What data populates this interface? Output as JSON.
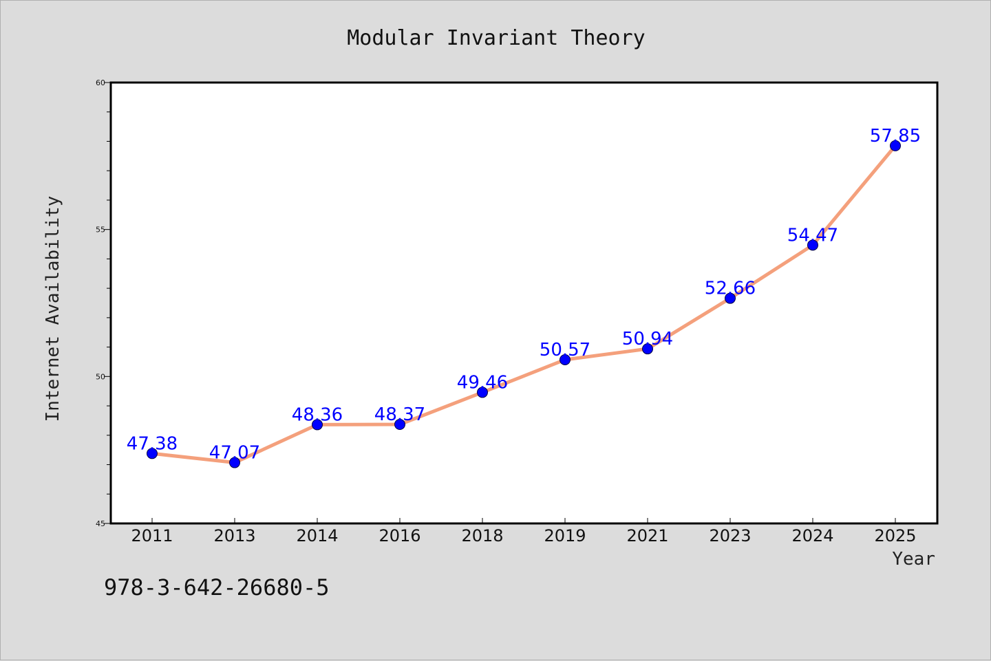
{
  "chart_data": {
    "type": "line",
    "title": "Modular Invariant Theory",
    "xlabel": "Year",
    "ylabel": "Internet Availability",
    "categories": [
      "2011",
      "2013",
      "2014",
      "2016",
      "2018",
      "2019",
      "2021",
      "2023",
      "2024",
      "2025"
    ],
    "series": [
      {
        "values": [
          47.38,
          47.07,
          48.36,
          48.37,
          49.46,
          50.57,
          50.94,
          52.66,
          54.47,
          57.85
        ],
        "labels": [
          "47.38",
          "47.07",
          "48.36",
          "48.37",
          "49.46",
          "50.57",
          "50.94",
          "52.66",
          "54.47",
          "57.85"
        ]
      }
    ],
    "ylim": [
      45,
      60
    ],
    "yticks": [
      "45",
      "50",
      "55",
      "60"
    ],
    "grid": false,
    "line_color": "#f4a07c",
    "marker_color": "#0000ff",
    "label_color": "#0000ff"
  },
  "annotation": "978-3-642-26680-5"
}
